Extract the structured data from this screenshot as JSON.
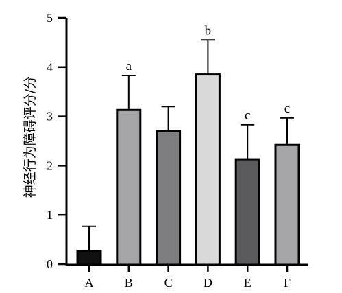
{
  "chart_data": {
    "type": "bar",
    "categories": [
      "A",
      "B",
      "C",
      "D",
      "E",
      "F"
    ],
    "values": [
      0.27,
      3.13,
      2.7,
      3.85,
      2.13,
      2.42
    ],
    "errors": [
      0.5,
      0.7,
      0.5,
      0.7,
      0.7,
      0.55
    ],
    "significance": [
      "",
      "a",
      "",
      "b",
      "c",
      "c"
    ],
    "bar_colors": [
      "#111111",
      "#a5a5a8",
      "#7d7d80",
      "#d9d9d9",
      "#5a5a5c",
      "#a5a5a8"
    ],
    "xlabel": "",
    "ylabel": "神经行为障碍评分/分",
    "ylim": [
      0,
      5
    ],
    "yticks": [
      0,
      1,
      2,
      3,
      4,
      5
    ],
    "grid": false,
    "legend": "none"
  }
}
